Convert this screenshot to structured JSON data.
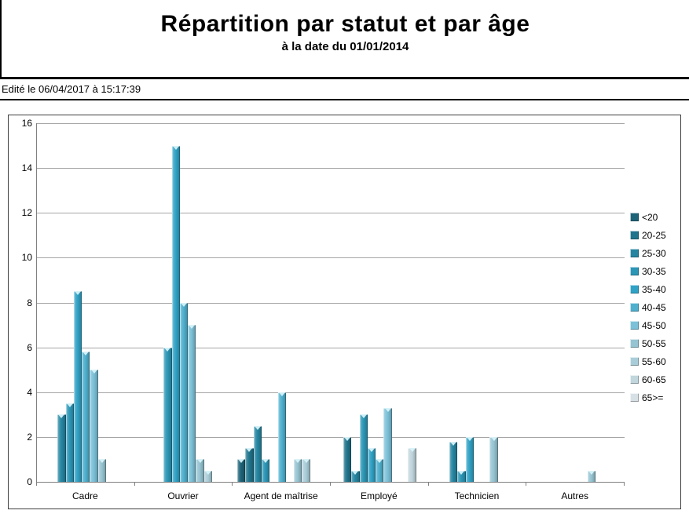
{
  "header": {
    "title": "Répartition par statut et par âge",
    "subtitle": "à la date du 01/01/2014",
    "edited_line": "Edité le 06/04/2017 à 15:17:39"
  },
  "chart_data": {
    "type": "bar",
    "title": "Répartition par statut et par âge",
    "subtitle": "à la date du 01/01/2014",
    "categories": [
      "Cadre",
      "Ouvrier",
      "Agent de maîtrise",
      "Employé",
      "Technicien",
      "Autres"
    ],
    "series": [
      {
        "name": "<20",
        "color": "#1E6377",
        "values": [
          0,
          0,
          1,
          0,
          0,
          0
        ]
      },
      {
        "name": "20-25",
        "color": "#20748C",
        "values": [
          0,
          0,
          1.5,
          2,
          0,
          0
        ]
      },
      {
        "name": "25-30",
        "color": "#2585A1",
        "values": [
          3,
          0,
          2.5,
          0.5,
          1.8,
          0
        ]
      },
      {
        "name": "30-35",
        "color": "#2B96B6",
        "values": [
          3.5,
          6,
          1,
          3,
          0.5,
          0
        ]
      },
      {
        "name": "35-40",
        "color": "#30A2C5",
        "values": [
          8.5,
          15,
          0,
          1.5,
          2,
          0
        ]
      },
      {
        "name": "40-45",
        "color": "#4FB0CE",
        "values": [
          5.8,
          8,
          4,
          1,
          0,
          0
        ]
      },
      {
        "name": "45-50",
        "color": "#7CC1D8",
        "values": [
          5,
          7,
          0,
          3.3,
          0,
          0
        ]
      },
      {
        "name": "50-55",
        "color": "#96C4D2",
        "values": [
          1,
          1,
          1,
          0,
          2,
          0.5
        ]
      },
      {
        "name": "55-60",
        "color": "#A9CDD8",
        "values": [
          0,
          0.5,
          1,
          0,
          0,
          0
        ]
      },
      {
        "name": "60-65",
        "color": "#C1D6DD",
        "values": [
          0,
          0,
          0,
          1.5,
          0,
          0
        ]
      },
      {
        "name": "65>=",
        "color": "#D7E1E5",
        "values": [
          0,
          0,
          0,
          0,
          0,
          0
        ]
      }
    ],
    "ylim": [
      0,
      16
    ],
    "ytick_step": 2,
    "yticks": [
      0,
      2,
      4,
      6,
      8,
      10,
      12,
      14,
      16
    ],
    "grid": "horizontal",
    "legend_position": "right"
  }
}
